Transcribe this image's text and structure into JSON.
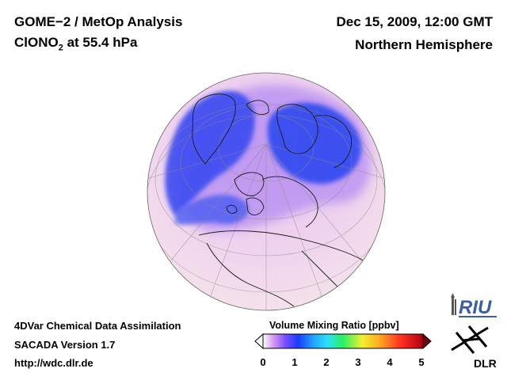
{
  "header": {
    "title_line1": "GOME−2 / MetOp Analysis",
    "title_line2_prefix": "ClONO",
    "title_line2_subscript": "2",
    "title_line2_suffix": " at 55.4 hPa",
    "date": "Dec 15, 2009, 12:00 GMT",
    "region": "Northern Hemisphere"
  },
  "footer": {
    "line1": "4DVar Chemical Data Assimilation",
    "line2": "SACADA Version 1.7",
    "line3": "http://wdc.dlr.de"
  },
  "colorbar": {
    "title": "Volume Mixing Ratio [ppbv]",
    "ticks": [
      {
        "label": "0",
        "value": 0
      },
      {
        "label": "1",
        "value": 1
      },
      {
        "label": "2",
        "value": 2
      },
      {
        "label": "3",
        "value": 3
      },
      {
        "label": "4",
        "value": 4
      },
      {
        "label": "5",
        "value": 5
      }
    ],
    "range": [
      0,
      5
    ],
    "colors": [
      "#ffffff",
      "#d9a0f0",
      "#7a4cff",
      "#1a3cff",
      "#22a8ff",
      "#29e0ff",
      "#2cf060",
      "#f0f030",
      "#ffb020",
      "#ff3020",
      "#b00010"
    ]
  },
  "logos": {
    "riu_text": "RIU",
    "dlr_text": "DLR"
  },
  "colors": {
    "globe_background": "#f2dcef",
    "low_value": "#3a4cf0",
    "mid_value": "#b58cf2"
  }
}
